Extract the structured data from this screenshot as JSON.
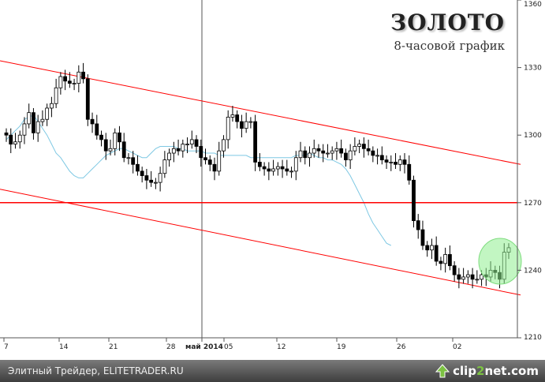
{
  "title": "ЗОЛОТО",
  "subtitle": "8-часовой график",
  "footer_text": "Элитный Трейдер, ELITETRADER.RU",
  "brand": {
    "part1": "clip",
    "part2": "2",
    "part3": "net.com"
  },
  "colors": {
    "channel": "#ff0000",
    "level": "#ff0000",
    "ma": "#7ec8e3",
    "candles": "#000000",
    "highlight": "#90ee90"
  },
  "chart_data": {
    "type": "candlestick",
    "ylim": [
      1210,
      1360
    ],
    "y_ticks": [
      1210,
      1240,
      1270,
      1300,
      1330,
      1360
    ],
    "x_ticks": [
      {
        "label": "7",
        "bold": false
      },
      {
        "label": "14",
        "bold": false
      },
      {
        "label": "21",
        "bold": false
      },
      {
        "label": "28",
        "bold": false
      },
      {
        "label": "май 2014",
        "bold": true
      },
      {
        "label": "05",
        "bold": false
      },
      {
        "label": "12",
        "bold": false
      },
      {
        "label": "19",
        "bold": false
      },
      {
        "label": "26",
        "bold": false
      },
      {
        "label": "02",
        "bold": false
      }
    ],
    "horizontal_level": 1270,
    "channel_upper": [
      [
        0,
        1333
      ],
      [
        99,
        1287
      ]
    ],
    "channel_lower": [
      [
        0,
        1276
      ],
      [
        99,
        1229
      ]
    ],
    "moving_average": [
      1298,
      1300,
      1302,
      1304,
      1307,
      1308,
      1309,
      1306,
      1303,
      1300,
      1296,
      1292,
      1290,
      1287,
      1284,
      1282,
      1281,
      1281,
      1283,
      1285,
      1287,
      1289,
      1291,
      1292,
      1293,
      1294,
      1294,
      1293,
      1292,
      1291,
      1290,
      1290,
      1292,
      1294,
      1295,
      1295,
      1295,
      1295,
      1294,
      1294,
      1293,
      1293,
      1293,
      1293,
      1292,
      1292,
      1292,
      1291,
      1291,
      1291,
      1291,
      1291,
      1291,
      1291,
      1290,
      1290,
      1290,
      1290,
      1290,
      1290,
      1290,
      1290,
      1290,
      1290,
      1291,
      1291,
      1291,
      1292,
      1291,
      1290,
      1290,
      1289,
      1289,
      1288,
      1287,
      1285,
      1282,
      1278,
      1274,
      1270,
      1265,
      1261,
      1258,
      1255,
      1252,
      1251
    ],
    "closes": [
      1300,
      1296,
      1297,
      1300,
      1305,
      1310,
      1301,
      1306,
      1307,
      1312,
      1314,
      1321,
      1326,
      1324,
      1323,
      1323,
      1328,
      1325,
      1307,
      1305,
      1300,
      1298,
      1293,
      1294,
      1301,
      1297,
      1290,
      1290,
      1287,
      1284,
      1282,
      1280,
      1279,
      1279,
      1283,
      1289,
      1292,
      1294,
      1293,
      1296,
      1296,
      1298,
      1295,
      1290,
      1289,
      1287,
      1284,
      1293,
      1298,
      1308,
      1309,
      1306,
      1303,
      1306,
      1306,
      1288,
      1286,
      1285,
      1284,
      1285,
      1286,
      1285,
      1284,
      1284,
      1290,
      1293,
      1290,
      1292,
      1294,
      1293,
      1292,
      1292,
      1293,
      1294,
      1292,
      1289,
      1293,
      1295,
      1296,
      1294,
      1293,
      1291,
      1291,
      1289,
      1288,
      1288,
      1287,
      1289,
      1287,
      1280,
      1262,
      1258,
      1251,
      1249,
      1251,
      1244,
      1243,
      1247,
      1242,
      1238,
      1236,
      1237,
      1238,
      1236,
      1236,
      1238,
      1237,
      1240,
      1239,
      1236,
      1248,
      1250
    ]
  }
}
